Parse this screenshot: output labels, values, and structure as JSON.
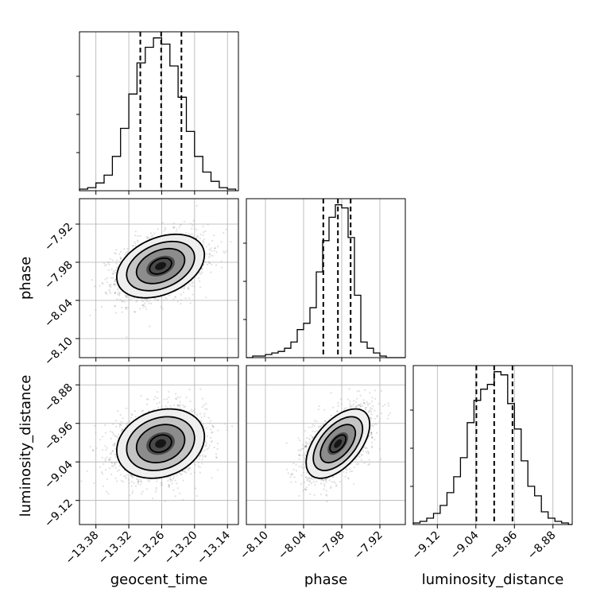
{
  "chart_data": {
    "type": "corner",
    "parameters": [
      "geocent_time",
      "phase",
      "luminosity_distance"
    ],
    "axis_labels": {
      "geocent_time": "geocent_time",
      "phase": "phase",
      "luminosity_distance": "luminosity_distance"
    },
    "ranges": {
      "geocent_time": [
        -13.41,
        -13.12
      ],
      "phase": [
        -8.13,
        -7.88
      ],
      "luminosity_distance": [
        -9.17,
        -8.84
      ]
    },
    "ticks": {
      "geocent_time": [
        -13.38,
        -13.32,
        -13.26,
        -13.2,
        -13.14
      ],
      "phase": [
        -8.1,
        -8.04,
        -7.98,
        -7.92
      ],
      "luminosity_distance": [
        -9.12,
        -9.04,
        -8.96,
        -8.88
      ]
    },
    "tick_labels": {
      "geocent_time": [
        "−13.38",
        "−13.32",
        "−13.26",
        "−13.20",
        "−13.14"
      ],
      "phase": [
        "−8.10",
        "−8.04",
        "−7.98",
        "−7.92"
      ],
      "luminosity_distance": [
        "−9.12",
        "−9.04",
        "−8.96",
        "−8.88"
      ]
    },
    "quantiles": {
      "geocent_time": [
        -13.299,
        -13.261,
        -13.224
      ],
      "phase": [
        -8.009,
        -7.986,
        -7.966
      ],
      "luminosity_distance": [
        -9.039,
        -9.002,
        -8.964
      ]
    },
    "histograms": {
      "geocent_time": {
        "edges": [
          -13.41,
          -13.395,
          -13.38,
          -13.365,
          -13.35,
          -13.335,
          -13.32,
          -13.305,
          -13.29,
          -13.275,
          -13.26,
          -13.245,
          -13.23,
          -13.215,
          -13.2,
          -13.185,
          -13.17,
          -13.155,
          -13.14,
          -13.125
        ],
        "counts": [
          1,
          2,
          5,
          10,
          22,
          40,
          62,
          82,
          92,
          98,
          94,
          80,
          60,
          38,
          22,
          12,
          6,
          2,
          1
        ]
      },
      "phase": {
        "edges": [
          -8.13,
          -8.12,
          -8.11,
          -8.1,
          -8.09,
          -8.08,
          -8.07,
          -8.06,
          -8.05,
          -8.04,
          -8.03,
          -8.02,
          -8.01,
          -8.0,
          -7.99,
          -7.98,
          -7.97,
          -7.96,
          -7.95,
          -7.94,
          -7.93,
          -7.92,
          -7.91,
          -7.9,
          -7.89,
          -7.88
        ],
        "counts": [
          0,
          1,
          1,
          2,
          3,
          4,
          6,
          10,
          18,
          22,
          32,
          55,
          75,
          90,
          98,
          96,
          77,
          40,
          10,
          6,
          3,
          1,
          0,
          0,
          0
        ]
      },
      "luminosity_distance": {
        "edges": [
          -9.17,
          -9.156,
          -9.142,
          -9.128,
          -9.114,
          -9.1,
          -9.086,
          -9.072,
          -9.058,
          -9.044,
          -9.03,
          -9.016,
          -9.002,
          -8.988,
          -8.974,
          -8.96,
          -8.946,
          -8.932,
          -8.918,
          -8.904,
          -8.89,
          -8.876,
          -8.862,
          -8.848,
          -8.84
        ],
        "counts": [
          1,
          2,
          4,
          7,
          12,
          20,
          30,
          42,
          64,
          78,
          85,
          88,
          96,
          94,
          76,
          60,
          40,
          24,
          18,
          8,
          4,
          2,
          1,
          0
        ]
      }
    },
    "pairs": [
      {
        "x": "geocent_time",
        "y": "phase",
        "mean": [
          -13.262,
          -7.986
        ],
        "sd": [
          0.04,
          0.025
        ],
        "corr": 0.35
      },
      {
        "x": "geocent_time",
        "y": "luminosity_distance",
        "mean": [
          -13.262,
          -9.002
        ],
        "sd": [
          0.04,
          0.036
        ],
        "corr": 0.2
      },
      {
        "x": "phase",
        "y": "luminosity_distance",
        "mean": [
          -7.986,
          -9.002
        ],
        "sd": [
          0.025,
          0.036
        ],
        "corr": 0.55
      }
    ],
    "grid": true
  }
}
